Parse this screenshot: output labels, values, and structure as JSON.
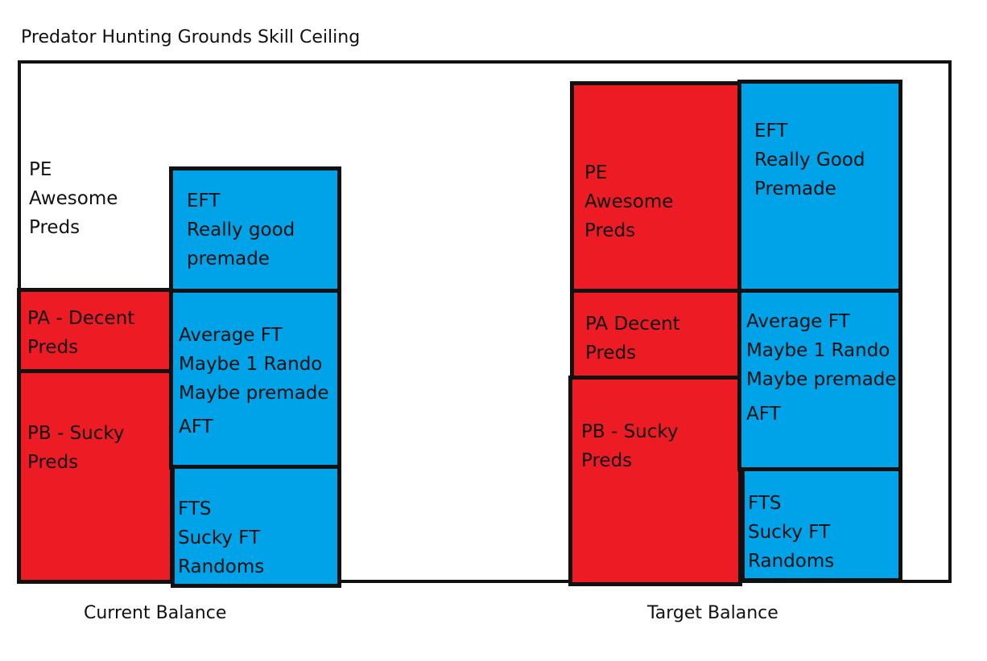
{
  "title": "Predator Hunting Grounds Skill Ceiling",
  "captions": {
    "current": "Current Balance",
    "target": "Target Balance"
  },
  "colors": {
    "predator": "#ed1c24",
    "fireteam": "#00a2e8",
    "border": "#111111"
  },
  "current": {
    "pe_label": [
      "PE",
      "Awesome",
      "Preds"
    ],
    "pa_label": [
      "PA - Decent",
      "Preds"
    ],
    "pb_label": [
      "PB - Sucky",
      "Preds"
    ],
    "eft_label": [
      "EFT",
      "Really good",
      "premade"
    ],
    "aft_label": [
      "Average FT",
      "Maybe 1 Rando",
      "Maybe premade",
      "AFT"
    ],
    "fts_label": [
      "FTS",
      "Sucky FT",
      "Randoms"
    ]
  },
  "target": {
    "pe_label": [
      "PE",
      "Awesome",
      "Preds"
    ],
    "pa_label": [
      "PA Decent",
      "Preds"
    ],
    "pb_label": [
      "PB - Sucky",
      "Preds"
    ],
    "eft_label": [
      "EFT",
      "Really Good",
      "Premade"
    ],
    "aft_label": [
      "Average FT",
      "Maybe 1 Rando",
      "Maybe premade",
      "AFT"
    ],
    "fts_label": [
      "FTS",
      "Sucky FT",
      "Randoms"
    ]
  }
}
